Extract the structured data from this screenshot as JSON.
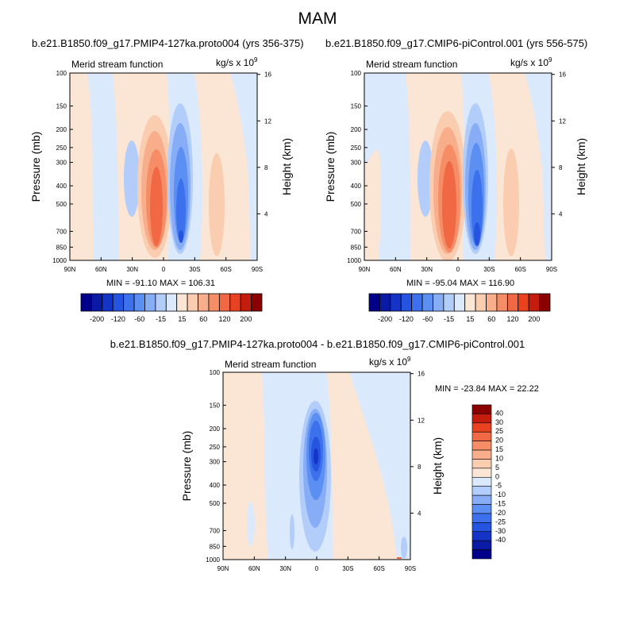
{
  "main_title": "MAM",
  "colors": {
    "scale": [
      "#00008b",
      "#0a1aa5",
      "#1434c8",
      "#2554e0",
      "#3d70ec",
      "#5b8ff2",
      "#87adf6",
      "#b3cdfb",
      "#dbe9fc",
      "#fbe6d6",
      "#fbcdb0",
      "#f8ae8a",
      "#f58d66",
      "#f06844",
      "#e84221",
      "#c51d0d",
      "#8b0000"
    ]
  },
  "chart_data": [
    {
      "type": "contour",
      "title": "b.e21.B1850.f09_g17.PMIP4-127ka.proto004 (yrs 356-375)",
      "left_label": "Merid stream function",
      "right_label": "kg/s x 10",
      "units_exponent": "9",
      "xlabel": "",
      "ylabel": "Pressure (mb)",
      "ylabel_right": "Height (km)",
      "x_ticks": [
        "90N",
        "60N",
        "30N",
        "0",
        "30S",
        "60S",
        "90S"
      ],
      "y_ticks": [
        "100",
        "150",
        "200",
        "250",
        "300",
        "400",
        "500",
        "700",
        "850",
        "1000"
      ],
      "height_ticks": [
        "16",
        "12",
        "8",
        "4"
      ],
      "min_max": "MIN = -91.10   MAX = 106.31",
      "min": -91.1,
      "max": 106.31,
      "colorbar_labels": [
        "-200",
        "-120",
        "-60",
        "-15",
        "15",
        "60",
        "120",
        "200"
      ]
    },
    {
      "type": "contour",
      "title": "b.e21.B1850.f09_g17.CMIP6-piControl.001 (yrs 556-575)",
      "left_label": "Merid stream function",
      "right_label": "kg/s x 10",
      "units_exponent": "9",
      "xlabel": "",
      "ylabel": "Pressure (mb)",
      "ylabel_right": "Height (km)",
      "x_ticks": [
        "90N",
        "60N",
        "30N",
        "0",
        "30S",
        "60S",
        "90S"
      ],
      "y_ticks": [
        "100",
        "150",
        "200",
        "250",
        "300",
        "400",
        "500",
        "700",
        "850",
        "1000"
      ],
      "height_ticks": [
        "16",
        "12",
        "8",
        "4"
      ],
      "min_max": "MIN = -95.04   MAX = 116.90",
      "min": -95.04,
      "max": 116.9,
      "colorbar_labels": [
        "-200",
        "-120",
        "-60",
        "-15",
        "15",
        "60",
        "120",
        "200"
      ]
    },
    {
      "type": "contour",
      "title": "b.e21.B1850.f09_g17.PMIP4-127ka.proto004 - b.e21.B1850.f09_g17.CMIP6-piControl.001",
      "left_label": "Merid stream function",
      "right_label": "kg/s x 10",
      "units_exponent": "9",
      "xlabel": "",
      "ylabel": "Pressure (mb)",
      "ylabel_right": "Height (km)",
      "x_ticks": [
        "90N",
        "60N",
        "30N",
        "0",
        "30S",
        "60S",
        "90S"
      ],
      "y_ticks": [
        "100",
        "150",
        "200",
        "250",
        "300",
        "400",
        "500",
        "700",
        "850",
        "1000"
      ],
      "height_ticks": [
        "16",
        "12",
        "8",
        "4"
      ],
      "min_max": "MIN = -23.84   MAX =  22.22",
      "min": -23.84,
      "max": 22.22,
      "colorbar_labels": [
        "40",
        "30",
        "25",
        "20",
        "15",
        "10",
        "5",
        "0",
        "-5",
        "-10",
        "-15",
        "-20",
        "-25",
        "-30",
        "-40"
      ]
    }
  ]
}
